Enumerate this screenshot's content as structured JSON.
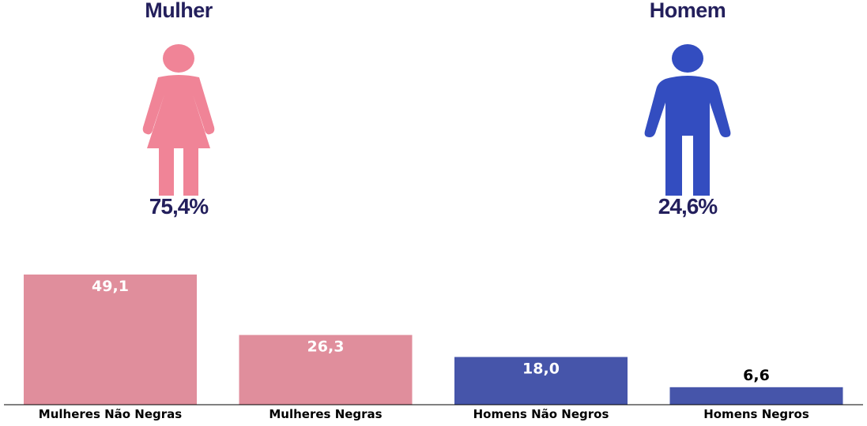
{
  "colors": {
    "title_text": "#231f5c",
    "woman_icon": "#f08497",
    "man_icon": "#334dc0",
    "women_bar": "#e08e9c",
    "men_bar": "#4655aa",
    "label_inside": "#ffffff",
    "label_outside": "#000000"
  },
  "gender": {
    "female": {
      "title": "Mulher",
      "percent": "75,4%",
      "icon": "woman-icon"
    },
    "male": {
      "title": "Homem",
      "percent": "24,6%",
      "icon": "man-icon"
    }
  },
  "chart_data": {
    "type": "bar",
    "categories": [
      "Mulheres Não Negras",
      "Mulheres Negras",
      "Homens Não Negros",
      "Homens Negros"
    ],
    "values": [
      49.1,
      26.3,
      18.0,
      6.6
    ],
    "value_labels": [
      "49,1",
      "26,3",
      "18,0",
      "6,6"
    ],
    "bar_colors": [
      "#e08e9c",
      "#e08e9c",
      "#4655aa",
      "#4655aa"
    ],
    "title": "",
    "xlabel": "",
    "ylabel": "",
    "ylim": [
      0,
      49.1
    ],
    "grid": false,
    "legend": "none"
  }
}
